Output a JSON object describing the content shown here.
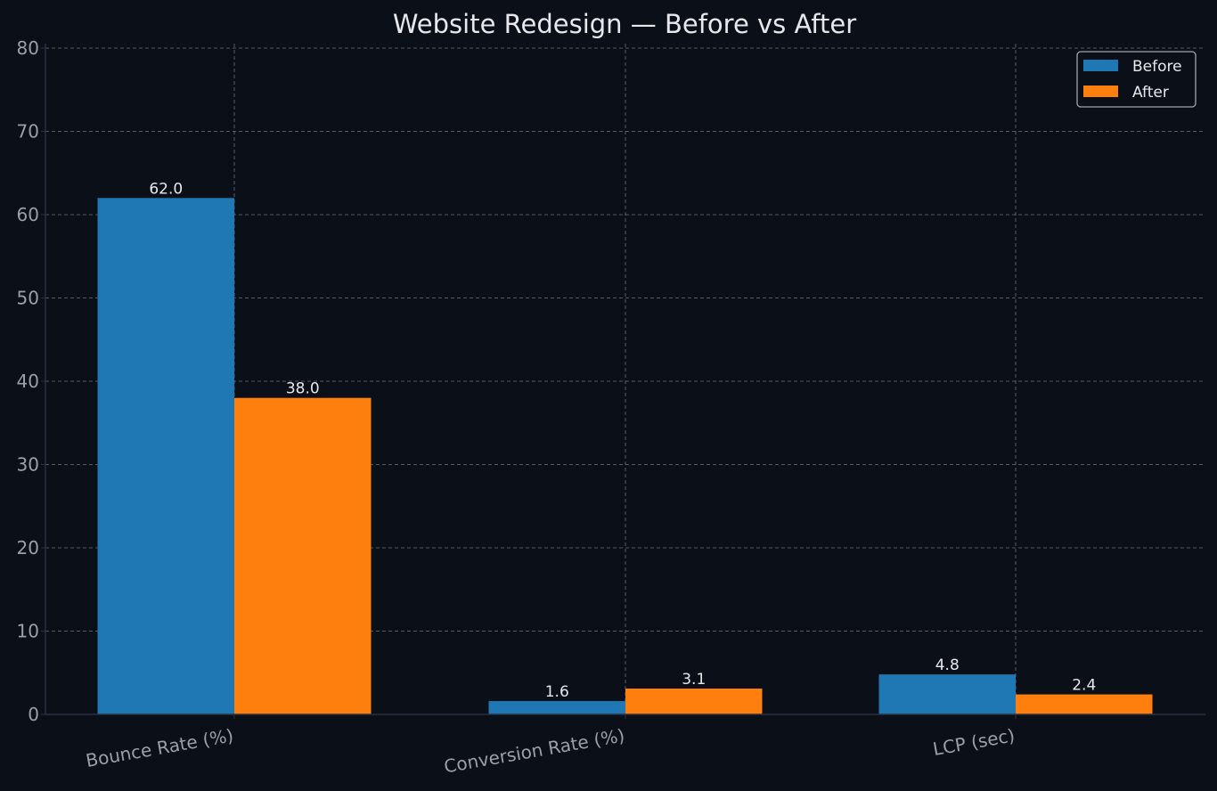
{
  "chart_data": {
    "type": "bar",
    "title": "Website Redesign — Before vs After",
    "xlabel": "",
    "ylabel": "",
    "categories": [
      "Bounce Rate (%)",
      "Conversion Rate (%)",
      "LCP (sec)"
    ],
    "series": [
      {
        "name": "Before",
        "values": [
          62.0,
          1.6,
          4.8
        ],
        "color": "#1f77b4"
      },
      {
        "name": "After",
        "values": [
          38.0,
          3.1,
          2.4
        ],
        "color": "#ff7f0e"
      }
    ],
    "data_labels": [
      [
        "62.0",
        "1.6",
        "4.8"
      ],
      [
        "38.0",
        "3.1",
        "2.4"
      ]
    ],
    "ylim": [
      0,
      80
    ],
    "yticks": [
      0,
      10,
      20,
      30,
      40,
      50,
      60,
      70,
      80
    ],
    "grid": true,
    "legend": "top-right",
    "background": "#0b0f17"
  }
}
